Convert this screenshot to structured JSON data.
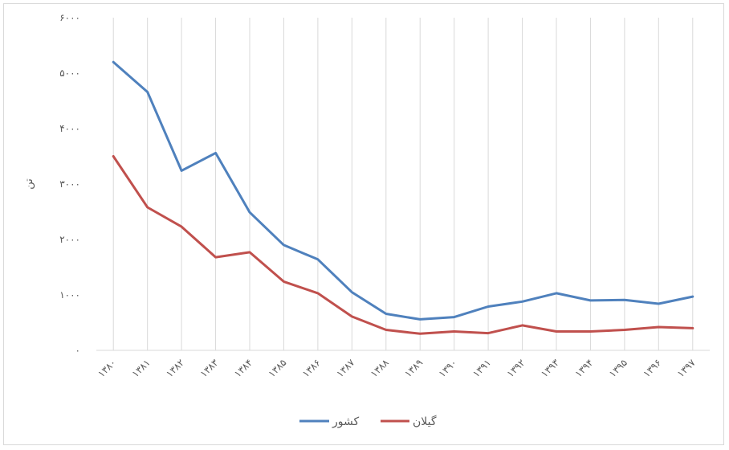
{
  "chart_data": {
    "type": "line",
    "ylabel": "تن",
    "ylim": [
      0,
      6000
    ],
    "y_ticks": [
      {
        "value": 0,
        "label": "۰"
      },
      {
        "value": 1000,
        "label": "۱۰۰۰"
      },
      {
        "value": 2000,
        "label": "۲۰۰۰"
      },
      {
        "value": 3000,
        "label": "۳۰۰۰"
      },
      {
        "value": 4000,
        "label": "۴۰۰۰"
      },
      {
        "value": 5000,
        "label": "۵۰۰۰"
      },
      {
        "value": 6000,
        "label": "۶۰۰۰"
      }
    ],
    "categories": [
      "۱۳۸۰",
      "۱۳۸۱",
      "۱۳۸۲",
      "۱۳۸۳",
      "۱۳۸۴",
      "۱۳۸۵",
      "۱۳۸۶",
      "۱۳۸۷",
      "۱۳۸۸",
      "۱۳۸۹",
      "۱۳۹۰",
      "۱۳۹۱",
      "۱۳۹۲",
      "۱۳۹۳",
      "۱۳۹۴",
      "۱۳۹۵",
      "۱۳۹۶",
      "۱۳۹۷"
    ],
    "vertical_gridlines": true,
    "legend_position": "bottom",
    "series": [
      {
        "name": "کشور",
        "color": "#4f81bd",
        "values": [
          5200,
          4660,
          3240,
          3560,
          2490,
          1900,
          1640,
          1050,
          660,
          560,
          600,
          790,
          880,
          1030,
          900,
          910,
          840,
          970
        ]
      },
      {
        "name": "گیلان",
        "color": "#c0504d",
        "values": [
          3500,
          2580,
          2230,
          1680,
          1770,
          1240,
          1030,
          610,
          370,
          300,
          340,
          310,
          450,
          340,
          340,
          370,
          420,
          400
        ]
      }
    ]
  }
}
